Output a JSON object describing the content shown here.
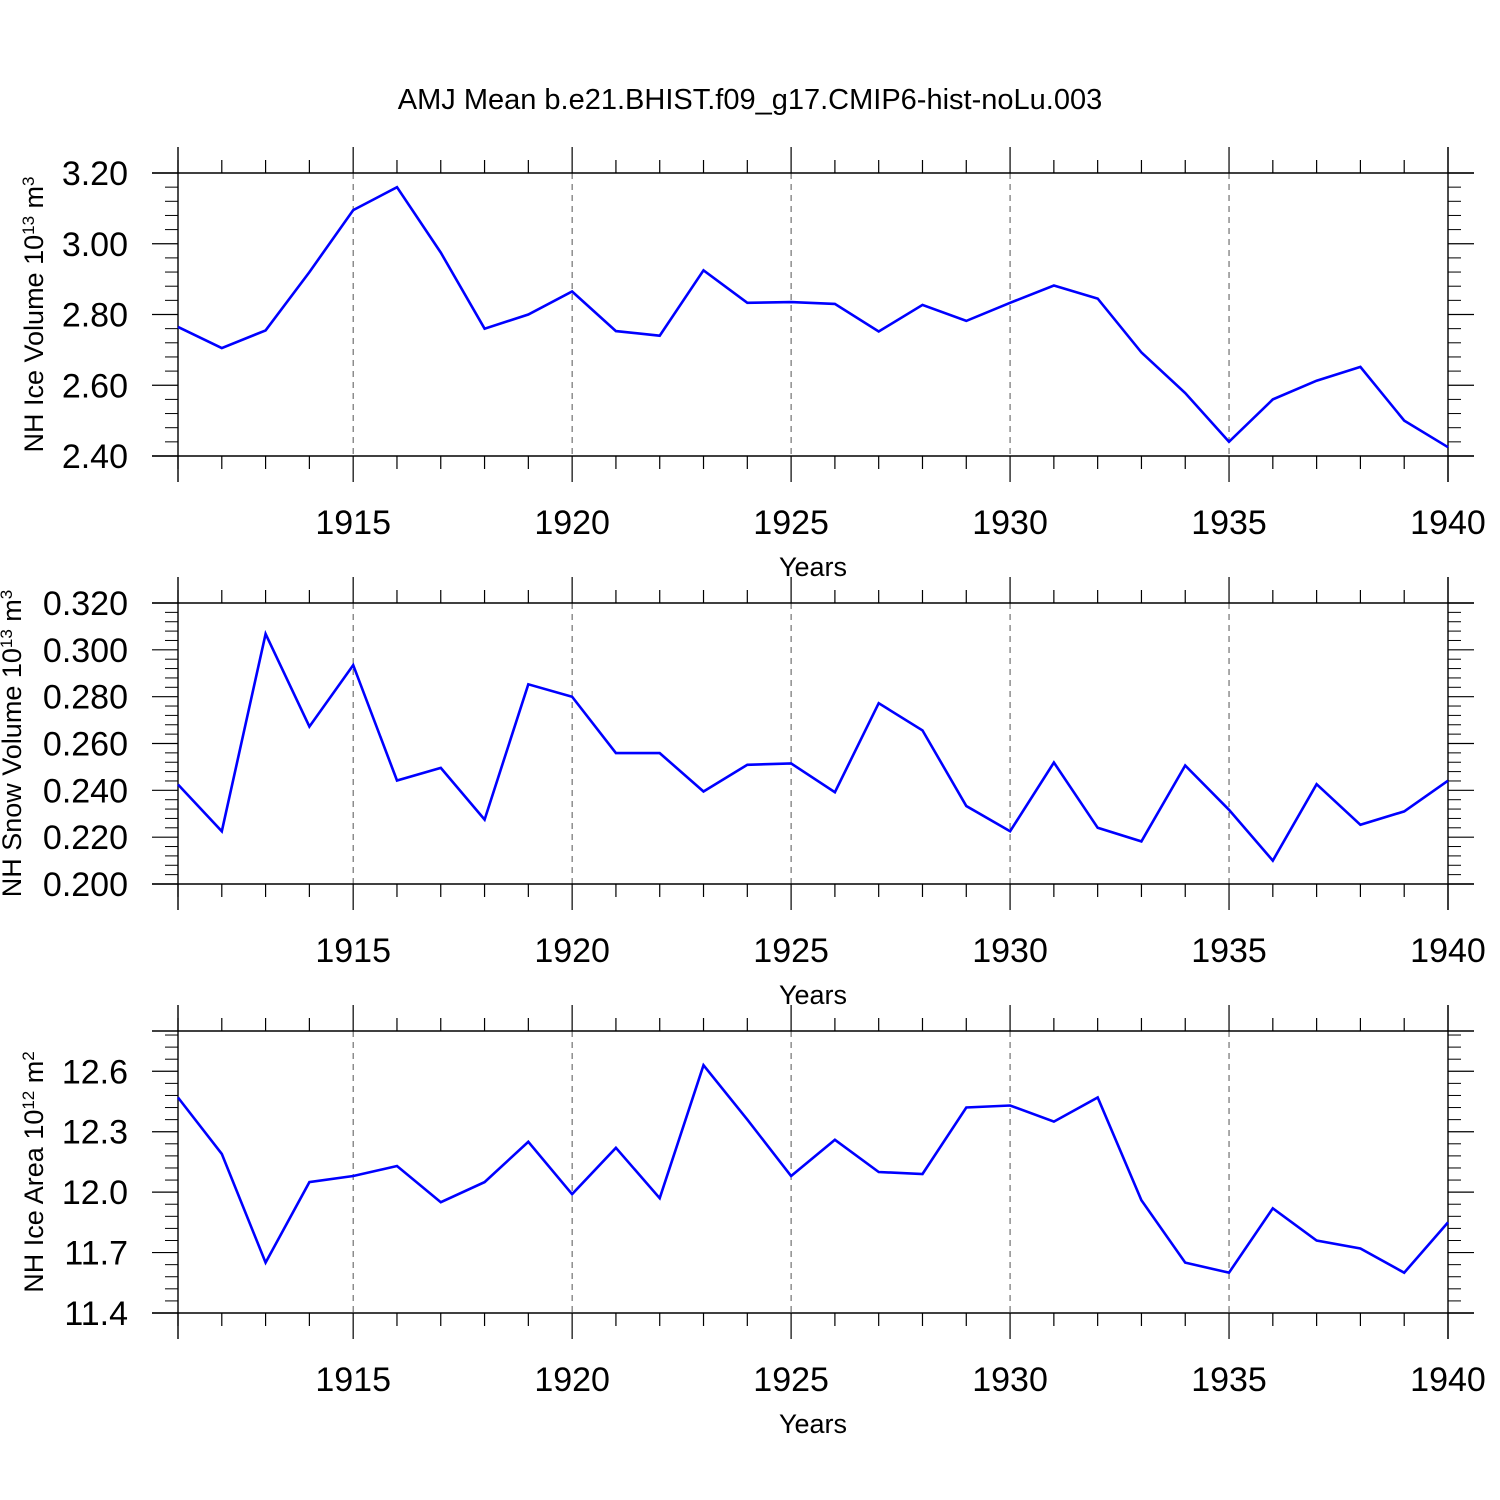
{
  "figure_title": "AMJ Mean b.e21.BHIST.f09_g17.CMIP6-hist-noLu.003",
  "colors": {
    "line": "#0000ff",
    "axis": "#000000",
    "grid": "#555555"
  },
  "chart_data": [
    {
      "type": "line",
      "ylabel": "NH Ice Volume",
      "ylabel_unit_base": "10",
      "ylabel_unit_exp": "13",
      "ylabel_unit_m": "m",
      "ylabel_unit_mexp": "3",
      "xlabel": "Years",
      "xlim": [
        1911,
        1940
      ],
      "ylim": [
        2.4,
        3.2
      ],
      "yticks": [
        "3.20",
        "3.00",
        "2.80",
        "2.60",
        "2.40"
      ],
      "ytick_values": [
        3.2,
        3.0,
        2.8,
        2.6,
        2.4
      ],
      "xticks": [
        "1915",
        "1920",
        "1925",
        "1930",
        "1935",
        "1940"
      ],
      "xtick_values": [
        1915,
        1920,
        1925,
        1930,
        1935,
        1940
      ],
      "x": [
        1911,
        1912,
        1913,
        1914,
        1915,
        1916,
        1917,
        1918,
        1919,
        1920,
        1921,
        1922,
        1923,
        1924,
        1925,
        1926,
        1927,
        1928,
        1929,
        1930,
        1931,
        1932,
        1933,
        1934,
        1935,
        1936,
        1937,
        1938,
        1939,
        1940
      ],
      "values": [
        2.765,
        2.705,
        2.755,
        2.92,
        3.095,
        3.16,
        2.975,
        2.76,
        2.8,
        2.865,
        2.753,
        2.74,
        2.925,
        2.833,
        2.835,
        2.83,
        2.752,
        2.827,
        2.782,
        2.833,
        2.882,
        2.845,
        2.693,
        2.578,
        2.44,
        2.56,
        2.613,
        2.652,
        2.5,
        2.425
      ]
    },
    {
      "type": "line",
      "ylabel": "NH Snow Volume",
      "ylabel_unit_base": "10",
      "ylabel_unit_exp": "13",
      "ylabel_unit_m": "m",
      "ylabel_unit_mexp": "3",
      "xlabel": "Years",
      "xlim": [
        1911,
        1940
      ],
      "ylim": [
        0.2,
        0.32
      ],
      "yticks": [
        "0.320",
        "0.300",
        "0.280",
        "0.260",
        "0.240",
        "0.220",
        "0.200"
      ],
      "ytick_values": [
        0.32,
        0.3,
        0.28,
        0.26,
        0.24,
        0.22,
        0.2
      ],
      "xticks": [
        "1915",
        "1920",
        "1925",
        "1930",
        "1935",
        "1940"
      ],
      "xtick_values": [
        1915,
        1920,
        1925,
        1930,
        1935,
        1940
      ],
      "x": [
        1911,
        1912,
        1913,
        1914,
        1915,
        1916,
        1917,
        1918,
        1919,
        1920,
        1921,
        1922,
        1923,
        1924,
        1925,
        1926,
        1927,
        1928,
        1929,
        1930,
        1931,
        1932,
        1933,
        1934,
        1935,
        1936,
        1937,
        1938,
        1939,
        1940
      ],
      "values": [
        0.2425,
        0.2225,
        0.3068,
        0.2672,
        0.2935,
        0.2442,
        0.2496,
        0.2275,
        0.2853,
        0.28,
        0.2559,
        0.2559,
        0.2395,
        0.2509,
        0.2515,
        0.2392,
        0.2772,
        0.2656,
        0.2333,
        0.2225,
        0.2519,
        0.224,
        0.2182,
        0.2506,
        0.2317,
        0.21,
        0.2426,
        0.2253,
        0.231,
        0.2441
      ]
    },
    {
      "type": "line",
      "ylabel": "NH Ice Area",
      "ylabel_unit_base": "10",
      "ylabel_unit_exp": "12",
      "ylabel_unit_m": "m",
      "ylabel_unit_mexp": "2",
      "xlabel": "Years",
      "xlim": [
        1911,
        1940
      ],
      "ylim": [
        11.4,
        12.8
      ],
      "yticks": [
        "12.6",
        "12.3",
        "12.0",
        "11.7",
        "11.4"
      ],
      "ytick_values": [
        12.6,
        12.3,
        12.0,
        11.7,
        11.4
      ],
      "xticks": [
        "1915",
        "1920",
        "1925",
        "1930",
        "1935",
        "1940"
      ],
      "xtick_values": [
        1915,
        1920,
        1925,
        1930,
        1935,
        1940
      ],
      "x": [
        1911,
        1912,
        1913,
        1914,
        1915,
        1916,
        1917,
        1918,
        1919,
        1920,
        1921,
        1922,
        1923,
        1924,
        1925,
        1926,
        1927,
        1928,
        1929,
        1930,
        1931,
        1932,
        1933,
        1934,
        1935,
        1936,
        1937,
        1938,
        1939,
        1940
      ],
      "values": [
        12.47,
        12.19,
        11.65,
        12.05,
        12.08,
        12.13,
        11.95,
        12.05,
        12.25,
        11.99,
        12.22,
        11.97,
        12.63,
        12.36,
        12.08,
        12.26,
        12.1,
        12.09,
        12.42,
        12.43,
        12.35,
        12.47,
        11.96,
        11.65,
        11.6,
        11.92,
        11.76,
        11.72,
        11.6,
        11.85
      ]
    }
  ]
}
